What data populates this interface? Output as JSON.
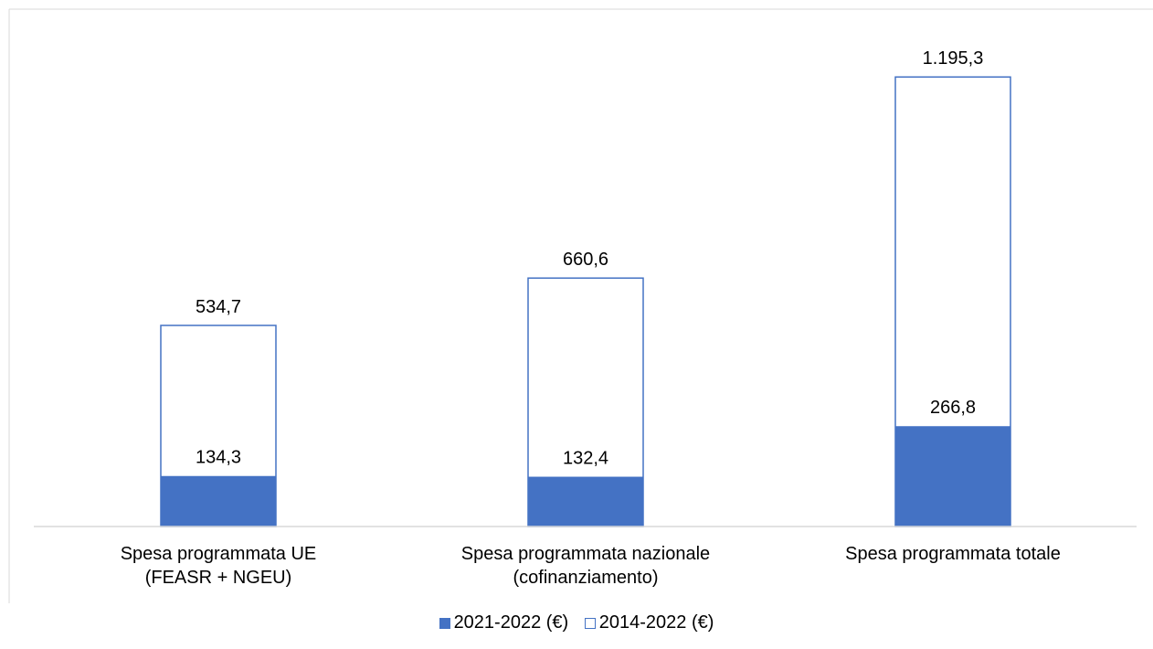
{
  "chart_data": {
    "type": "bar",
    "stacked": false,
    "overlapping": true,
    "categories": [
      [
        "Spesa programmata UE",
        "(FEASR + NGEU)"
      ],
      [
        "Spesa programmata nazionale",
        "(cofinanziamento)"
      ],
      [
        "Spesa programmata totale"
      ]
    ],
    "series": [
      {
        "name": "2021-2022 (€)",
        "style": "filled",
        "color": "#4472C4",
        "values": [
          134.3,
          132.4,
          266.8
        ],
        "labels": [
          "134,3",
          "132,4",
          "266,8"
        ]
      },
      {
        "name": "2014-2022 (€)",
        "style": "outline",
        "color": "#4472C4",
        "values": [
          534.7,
          660.6,
          1195.3
        ],
        "labels": [
          "534,7",
          "660,6",
          "1.195,3"
        ]
      }
    ],
    "ylim": [
      0,
      1400
    ],
    "grid": false,
    "y_axis_visible": false,
    "legend_position": "bottom"
  }
}
